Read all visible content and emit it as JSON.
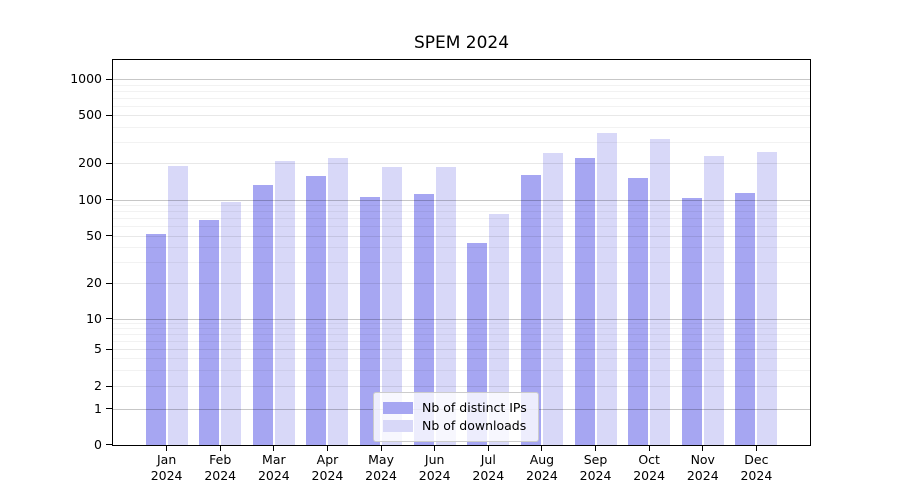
{
  "title": "SPEM 2024",
  "chart_data": {
    "type": "bar",
    "title": "SPEM 2024",
    "categories": [
      "Jan 2024",
      "Feb 2024",
      "Mar 2024",
      "Apr 2024",
      "May 2024",
      "Jun 2024",
      "Jul 2024",
      "Aug 2024",
      "Sep 2024",
      "Oct 2024",
      "Nov 2024",
      "Dec 2024"
    ],
    "series": [
      {
        "name": "Nb of distinct IPs",
        "slug": "distinct-ips",
        "color": "#a6a6f2",
        "values": [
          51,
          68,
          133,
          157,
          106,
          112,
          43,
          160,
          222,
          152,
          103,
          113
        ]
      },
      {
        "name": "Nb of downloads",
        "slug": "downloads",
        "color": "#d8d8f8",
        "values": [
          190,
          95,
          208,
          220,
          185,
          185,
          76,
          245,
          355,
          318,
          230,
          250
        ]
      }
    ],
    "xlabel": "",
    "ylabel": "",
    "yscale": "symlog",
    "y_ticks": [
      0,
      1,
      2,
      5,
      10,
      20,
      50,
      100,
      200,
      500,
      1000
    ],
    "ylim": [
      0,
      1450
    ],
    "grid": true,
    "legend_position": "inside-bottom-center"
  }
}
